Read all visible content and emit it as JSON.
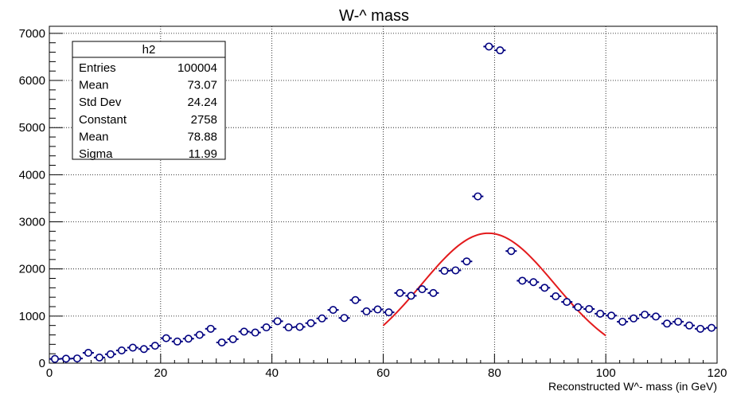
{
  "chart_data": {
    "type": "scatter",
    "title": "W-^ mass",
    "xlabel": "Reconstructed W^- mass (in GeV)",
    "ylabel": "",
    "xlim": [
      0,
      120
    ],
    "ylim": [
      0,
      7150
    ],
    "x_ticks": [
      0,
      20,
      40,
      60,
      80,
      100,
      120
    ],
    "y_ticks": [
      0,
      1000,
      2000,
      3000,
      4000,
      5000,
      6000,
      7000
    ],
    "grid": true,
    "bin_width": 2,
    "series": [
      {
        "name": "h2",
        "color": "#000080",
        "x": [
          1,
          3,
          5,
          7,
          9,
          11,
          13,
          15,
          17,
          19,
          21,
          23,
          25,
          27,
          29,
          31,
          33,
          35,
          37,
          39,
          41,
          43,
          45,
          47,
          49,
          51,
          53,
          55,
          57,
          59,
          61,
          63,
          65,
          67,
          69,
          71,
          73,
          75,
          77,
          79,
          81,
          83,
          85,
          87,
          89,
          91,
          93,
          95,
          97,
          99,
          101,
          103,
          105,
          107,
          109,
          111,
          113,
          115,
          117,
          119
        ],
        "y": [
          90,
          95,
          100,
          220,
          120,
          190,
          270,
          330,
          300,
          370,
          530,
          460,
          520,
          600,
          730,
          440,
          510,
          670,
          650,
          760,
          890,
          760,
          770,
          850,
          950,
          1130,
          960,
          1340,
          1100,
          1140,
          1080,
          1490,
          1430,
          1570,
          1490,
          1960,
          1970,
          2160,
          3540,
          6720,
          6640,
          2380,
          1750,
          1720,
          1600,
          1420,
          1300,
          1190,
          1150,
          1050,
          1010,
          880,
          950,
          1030,
          990,
          840,
          880,
          800,
          730,
          750
        ]
      }
    ],
    "fit": {
      "type": "gaussian",
      "color": "#e31a1c",
      "constant": 2758,
      "mean": 78.88,
      "sigma": 11.99,
      "range": [
        60,
        100
      ]
    },
    "stats_box": {
      "title": "h2",
      "rows": [
        {
          "label": "Entries",
          "value": "100004"
        },
        {
          "label": "Mean",
          "value": "73.07"
        },
        {
          "label": "Std Dev",
          "value": "24.24"
        },
        {
          "label": "Constant",
          "value": "2758"
        },
        {
          "label": "Mean",
          "value": "78.88"
        },
        {
          "label": "Sigma",
          "value": "11.99"
        }
      ]
    }
  }
}
